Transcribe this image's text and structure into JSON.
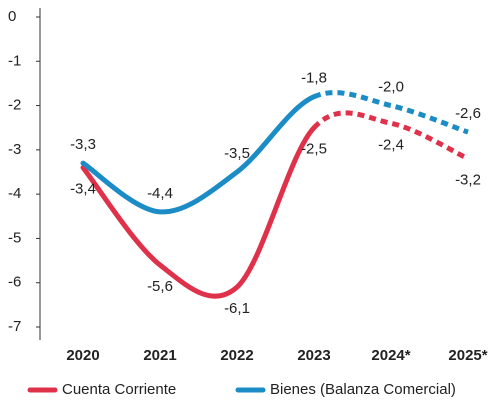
{
  "chart_data": {
    "type": "line",
    "categories": [
      "2020",
      "2021",
      "2022",
      "2023",
      "2024*",
      "2025*"
    ],
    "ylim": [
      -7,
      0
    ],
    "yticks": [
      0,
      -1,
      -2,
      -3,
      -4,
      -5,
      -6,
      -7
    ],
    "series": [
      {
        "name": "Cuenta Corriente",
        "color": "#e0314b",
        "values": [
          -3.4,
          -5.6,
          -6.1,
          -2.5,
          -2.4,
          -3.2
        ],
        "value_labels": [
          "-3,4",
          "-5,6",
          "-6,1",
          "-2,5",
          "-2,4",
          "-3,2"
        ]
      },
      {
        "name": "Bienes (Balanza Comercial)",
        "color": "#1b8cc6",
        "values": [
          -3.3,
          -4.4,
          -3.5,
          -1.8,
          -2.0,
          -2.6
        ],
        "value_labels": [
          "-3,3",
          "-4,4",
          "-3,5",
          "-1,8",
          "-2,0",
          "-2,6"
        ]
      }
    ]
  }
}
